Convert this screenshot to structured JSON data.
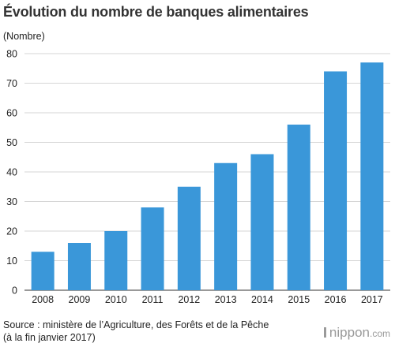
{
  "header": {
    "title": "Évolution du nombre de banques alimentaires"
  },
  "chart_data": {
    "type": "bar",
    "title": "Évolution du nombre de banques alimentaires",
    "ylabel": "(Nombre)",
    "xlabel": "",
    "categories": [
      "2008",
      "2009",
      "2010",
      "2011",
      "2012",
      "2013",
      "2014",
      "2015",
      "2016",
      "2017"
    ],
    "values": [
      13,
      16,
      20,
      28,
      35,
      43,
      46,
      56,
      74,
      77
    ],
    "ylim": [
      0,
      80
    ],
    "yticks": [
      0,
      10,
      20,
      30,
      40,
      50,
      60,
      70,
      80
    ],
    "grid": true,
    "bar_color": "#3a97d9"
  },
  "footer": {
    "source_line1": "Source : ministère de l’Agriculture, des Forêts et de la Pêche",
    "source_line2": "(à la fin janvier 2017)",
    "brand_name": "nippon",
    "brand_tld": ".com"
  }
}
